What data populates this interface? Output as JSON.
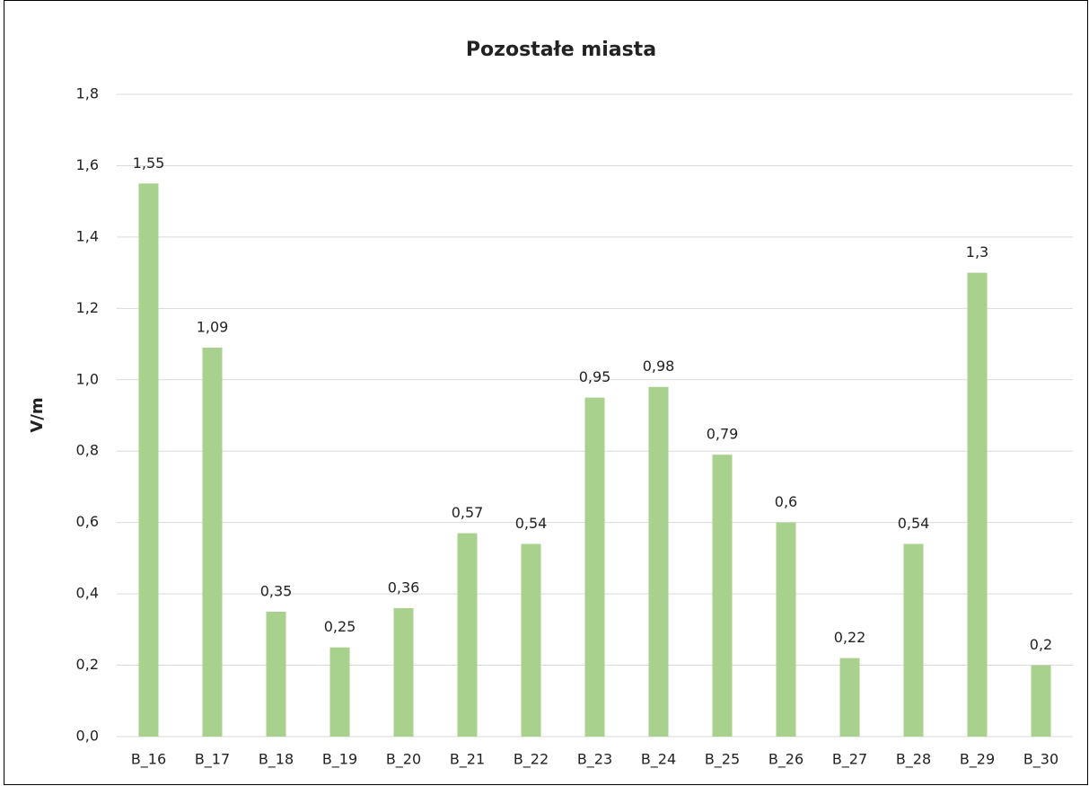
{
  "chart_data": {
    "type": "bar",
    "title": "Pozostałe miasta",
    "y_label": "V/m",
    "categories": [
      "B_16",
      "B_17",
      "B_18",
      "B_19",
      "B_20",
      "B_21",
      "B_22",
      "B_23",
      "B_24",
      "B_25",
      "B_26",
      "B_27",
      "B_28",
      "B_29",
      "B_30"
    ],
    "values": [
      1.55,
      1.09,
      0.35,
      0.25,
      0.36,
      0.57,
      0.54,
      0.95,
      0.98,
      0.79,
      0.6,
      0.22,
      0.54,
      1.3,
      0.2
    ],
    "value_labels": [
      "1,55",
      "1,09",
      "0,35",
      "0,25",
      "0,36",
      "0,57",
      "0,54",
      "0,95",
      "0,98",
      "0,79",
      "0,6",
      "0,22",
      "0,54",
      "1,3",
      "0,2"
    ],
    "color": "#a9d18e",
    "ylim": [
      0,
      1.8
    ],
    "yticks": [
      {
        "value": 0,
        "label": "0,0"
      },
      {
        "value": 0.2,
        "label": "0,2"
      },
      {
        "value": 0.4,
        "label": "0,4"
      },
      {
        "value": 0.6,
        "label": "0,6"
      },
      {
        "value": 0.8,
        "label": "0,8"
      },
      {
        "value": 1.0,
        "label": "1,0"
      },
      {
        "value": 1.2,
        "label": "1,2"
      },
      {
        "value": 1.4,
        "label": "1,4"
      },
      {
        "value": 1.6,
        "label": "1,6"
      },
      {
        "value": 1.8,
        "label": "1,8"
      }
    ],
    "grid": true
  }
}
